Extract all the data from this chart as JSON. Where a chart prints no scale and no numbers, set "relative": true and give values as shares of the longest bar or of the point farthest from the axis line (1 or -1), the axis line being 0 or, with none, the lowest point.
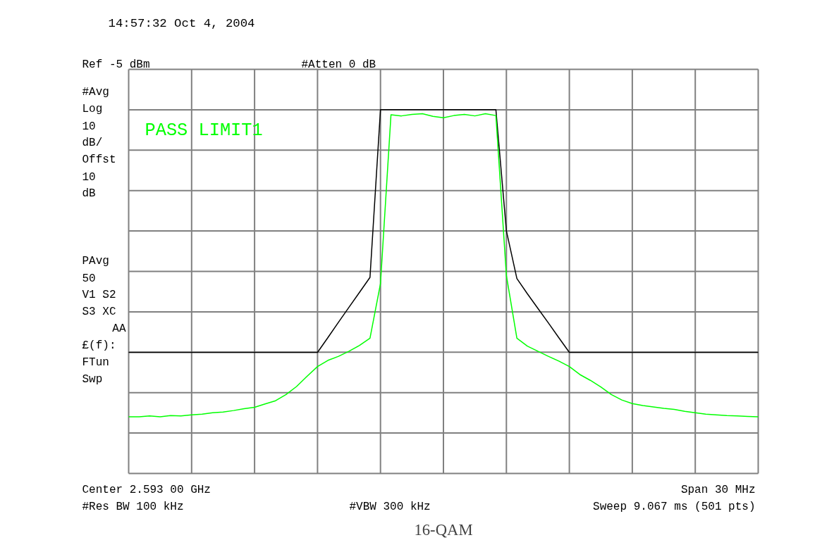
{
  "chart_data": {
    "type": "line",
    "title": "16-QAM",
    "relative": true,
    "categories": [
      null,
      null,
      null,
      null,
      null,
      null,
      null,
      null,
      null,
      null,
      null,
      null,
      null,
      null,
      null,
      null,
      null,
      null,
      null,
      null,
      null,
      null,
      null,
      null,
      null,
      null,
      null,
      null,
      null,
      null,
      null,
      null,
      null,
      null,
      null,
      null,
      null,
      null,
      null,
      null,
      null,
      null,
      null,
      null,
      null,
      null,
      null,
      null,
      null,
      null,
      null,
      null,
      null,
      null,
      null,
      null,
      null,
      null,
      null,
      null,
      null
    ],
    "tick_labels": false,
    "grid": true,
    "marker": "none",
    "line_style": "solid",
    "series": [
      {
        "color": "#000000",
        "values": [
          0.333,
          0.333,
          0.333,
          0.333,
          0.333,
          0.333,
          0.333,
          0.333,
          0.333,
          0.333,
          0.333,
          0.333,
          0.333,
          0.333,
          0.333,
          0.333,
          0.333,
          0.333,
          0.333,
          0.374,
          0.416,
          0.457,
          0.498,
          0.539,
          1,
          1,
          1,
          1,
          1,
          1,
          1,
          1,
          1,
          1,
          1,
          1,
          0.667,
          0.536,
          0.494,
          0.454,
          0.414,
          0.373,
          0.333,
          0.333,
          0.333,
          0.333,
          0.333,
          0.333,
          0.333,
          0.333,
          0.333,
          0.333,
          0.333,
          0.333,
          0.333,
          0.333,
          0.333,
          0.333,
          0.333,
          0.333,
          0.333
        ]
      },
      {
        "color": "#00ff00",
        "values": [
          0.156,
          0.156,
          0.158,
          0.156,
          0.159,
          0.158,
          0.161,
          0.163,
          0.167,
          0.169,
          0.173,
          0.178,
          0.182,
          0.191,
          0.2,
          0.217,
          0.239,
          0.267,
          0.294,
          0.311,
          0.322,
          0.336,
          0.352,
          0.372,
          0.522,
          0.986,
          0.983,
          0.987,
          0.989,
          0.982,
          0.978,
          0.984,
          0.987,
          0.983,
          0.989,
          0.984,
          0.544,
          0.372,
          0.35,
          0.336,
          0.322,
          0.309,
          0.294,
          0.272,
          0.256,
          0.238,
          0.217,
          0.202,
          0.192,
          0.187,
          0.183,
          0.179,
          0.176,
          0.171,
          0.167,
          0.163,
          0.161,
          0.159,
          0.158,
          0.157,
          0.156
        ]
      }
    ],
    "annotations": [
      "14:57:32  Oct 4, 2004",
      "Ref -5 dBm",
      "#Atten 0 dB",
      "#Avg",
      "Log",
      "10",
      "dB/",
      "Offst",
      "10",
      "dB",
      "PAvg",
      "50",
      "V1  S2",
      "S3  XC",
      "AA",
      "£(f):",
      "FTun",
      "Swp",
      "PASS LIMIT1",
      "Center 2.593 00 GHz",
      "Span 30 MHz",
      "#Res BW 100 kHz",
      "#VBW 300 kHz",
      "Sweep 9.067 ms (501 pts)"
    ]
  }
}
